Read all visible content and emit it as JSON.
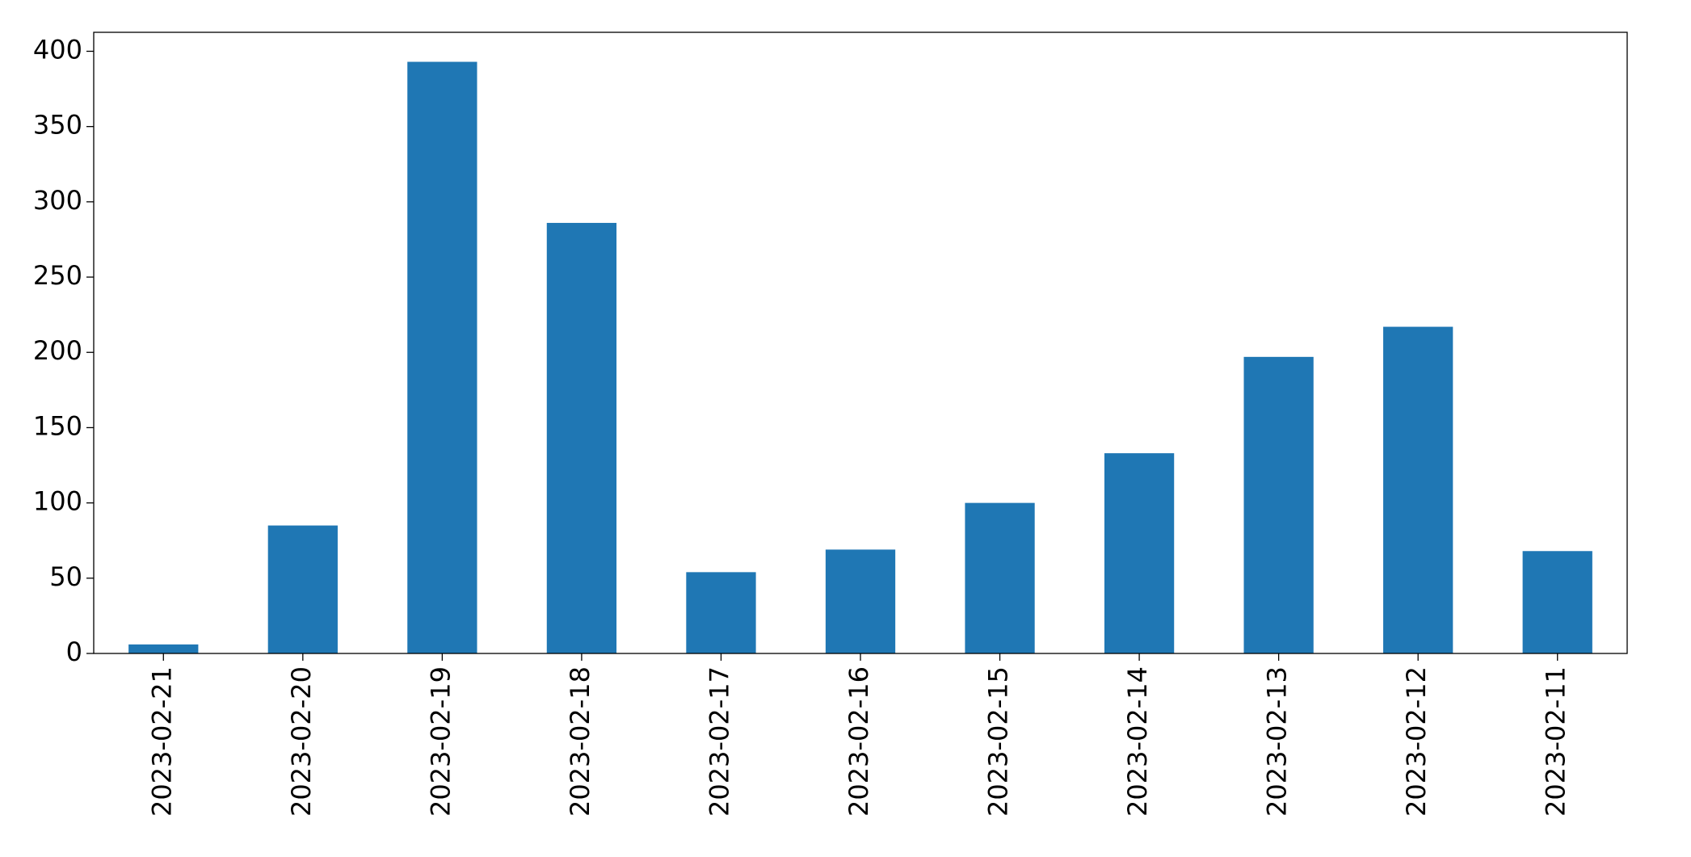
{
  "chart_data": {
    "type": "bar",
    "categories": [
      "2023-02-21",
      "2023-02-20",
      "2023-02-19",
      "2023-02-18",
      "2023-02-17",
      "2023-02-16",
      "2023-02-15",
      "2023-02-14",
      "2023-02-13",
      "2023-02-12",
      "2023-02-11"
    ],
    "values": [
      6,
      85,
      393,
      286,
      54,
      69,
      100,
      133,
      197,
      217,
      68
    ],
    "color": "#1f77b4",
    "ylim": [
      0,
      412.6
    ],
    "yticks": [
      0,
      50,
      100,
      150,
      200,
      250,
      300,
      350,
      400
    ],
    "grid": false
  }
}
